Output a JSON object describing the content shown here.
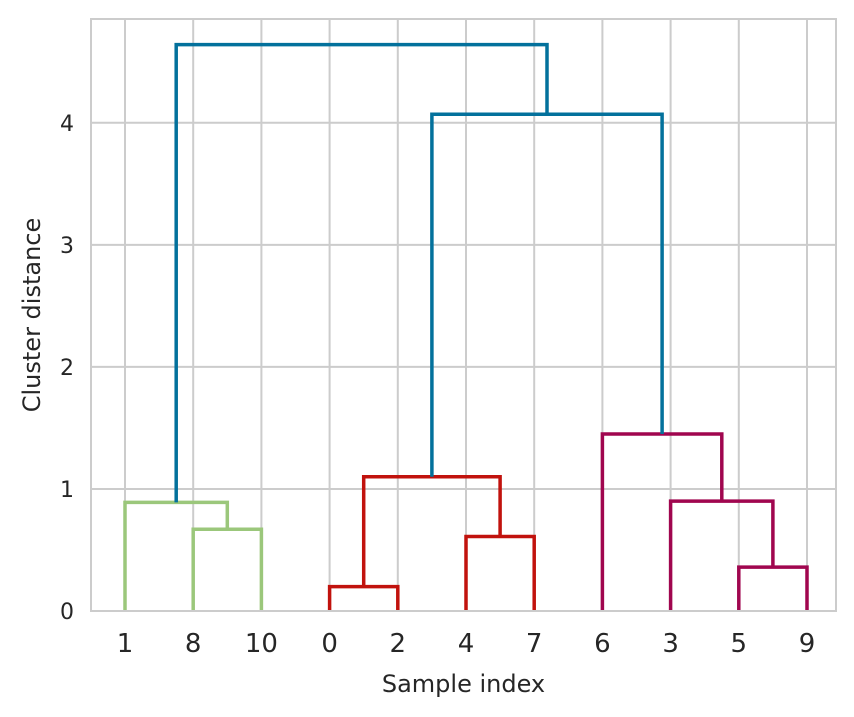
{
  "chart_data": {
    "type": "dendrogram",
    "title": "",
    "xlabel": "Sample index",
    "ylabel": "Cluster distance",
    "ylim": [
      0,
      4.85
    ],
    "yticks": [
      0,
      1,
      2,
      3,
      4
    ],
    "grid": true,
    "leaf_order": [
      "1",
      "8",
      "10",
      "0",
      "2",
      "4",
      "7",
      "6",
      "3",
      "5",
      "9"
    ],
    "colors": {
      "green": "#9bc77b",
      "red": "#c1120d",
      "magenta": "#a0064f",
      "blue": "#03719c"
    },
    "links": [
      {
        "x": [
          1.5,
          1.5,
          2.5,
          2.5
        ],
        "y": [
          0,
          0.67,
          0.67,
          0
        ],
        "color": "green"
      },
      {
        "x": [
          0.5,
          0.5,
          2.0,
          2.0
        ],
        "y": [
          0,
          0.89,
          0.89,
          0.67
        ],
        "color": "green"
      },
      {
        "x": [
          3.5,
          3.5,
          4.5,
          4.5
        ],
        "y": [
          0,
          0.2,
          0.2,
          0
        ],
        "color": "red"
      },
      {
        "x": [
          5.5,
          5.5,
          6.5,
          6.5
        ],
        "y": [
          0,
          0.61,
          0.61,
          0
        ],
        "color": "red"
      },
      {
        "x": [
          4.0,
          4.0,
          6.0,
          6.0
        ],
        "y": [
          0.2,
          1.1,
          1.1,
          0.61
        ],
        "color": "red"
      },
      {
        "x": [
          9.5,
          9.5,
          10.5,
          10.5
        ],
        "y": [
          0,
          0.36,
          0.36,
          0
        ],
        "color": "magenta"
      },
      {
        "x": [
          8.5,
          8.5,
          10.0,
          10.0
        ],
        "y": [
          0,
          0.9,
          0.9,
          0.36
        ],
        "color": "magenta"
      },
      {
        "x": [
          7.5,
          7.5,
          9.25,
          9.25
        ],
        "y": [
          0,
          1.45,
          1.45,
          0.9
        ],
        "color": "magenta"
      },
      {
        "x": [
          5.0,
          5.0,
          8.375,
          8.375
        ],
        "y": [
          1.1,
          4.07,
          4.07,
          1.45
        ],
        "color": "blue"
      },
      {
        "x": [
          1.25,
          1.25,
          6.6875,
          6.6875
        ],
        "y": [
          0.89,
          4.64,
          4.64,
          4.07
        ],
        "color": "blue"
      }
    ]
  }
}
